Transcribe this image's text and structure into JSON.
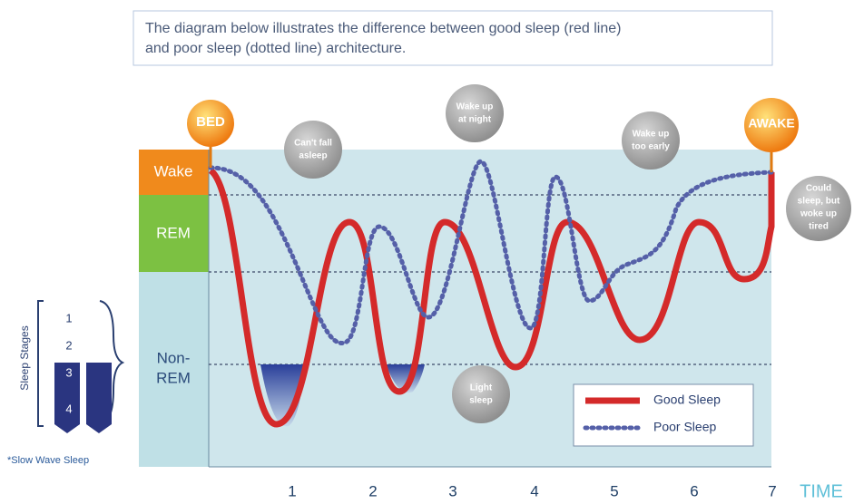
{
  "caption": {
    "lines": [
      "The diagram below illustrates the difference between good sleep (red line)",
      "and poor sleep (dotted line) architecture."
    ]
  },
  "markers": {
    "bed": "BED",
    "awake": "AWAKE"
  },
  "callouts": [
    {
      "lines": [
        "Can't fall",
        "asleep"
      ]
    },
    {
      "lines": [
        "Wake up",
        "at night"
      ]
    },
    {
      "lines": [
        "Wake up",
        "too early"
      ]
    },
    {
      "lines": [
        "Could",
        "sleep, but",
        "woke up",
        "tired"
      ]
    },
    {
      "lines": [
        "Light",
        "sleep"
      ]
    }
  ],
  "stages": {
    "wake": "Wake",
    "rem": "REM",
    "non_rem": [
      "Non-",
      "REM"
    ]
  },
  "sleep_stages": {
    "title": "Sleep Stages",
    "levels": [
      "1",
      "2",
      "3",
      "4"
    ],
    "note": "*Slow Wave Sleep"
  },
  "time_axis": {
    "labels": [
      "1",
      "2",
      "3",
      "4",
      "5",
      "6",
      "7"
    ],
    "title": "TIME"
  },
  "legend": [
    "Good Sleep",
    "Poor Sleep"
  ]
}
